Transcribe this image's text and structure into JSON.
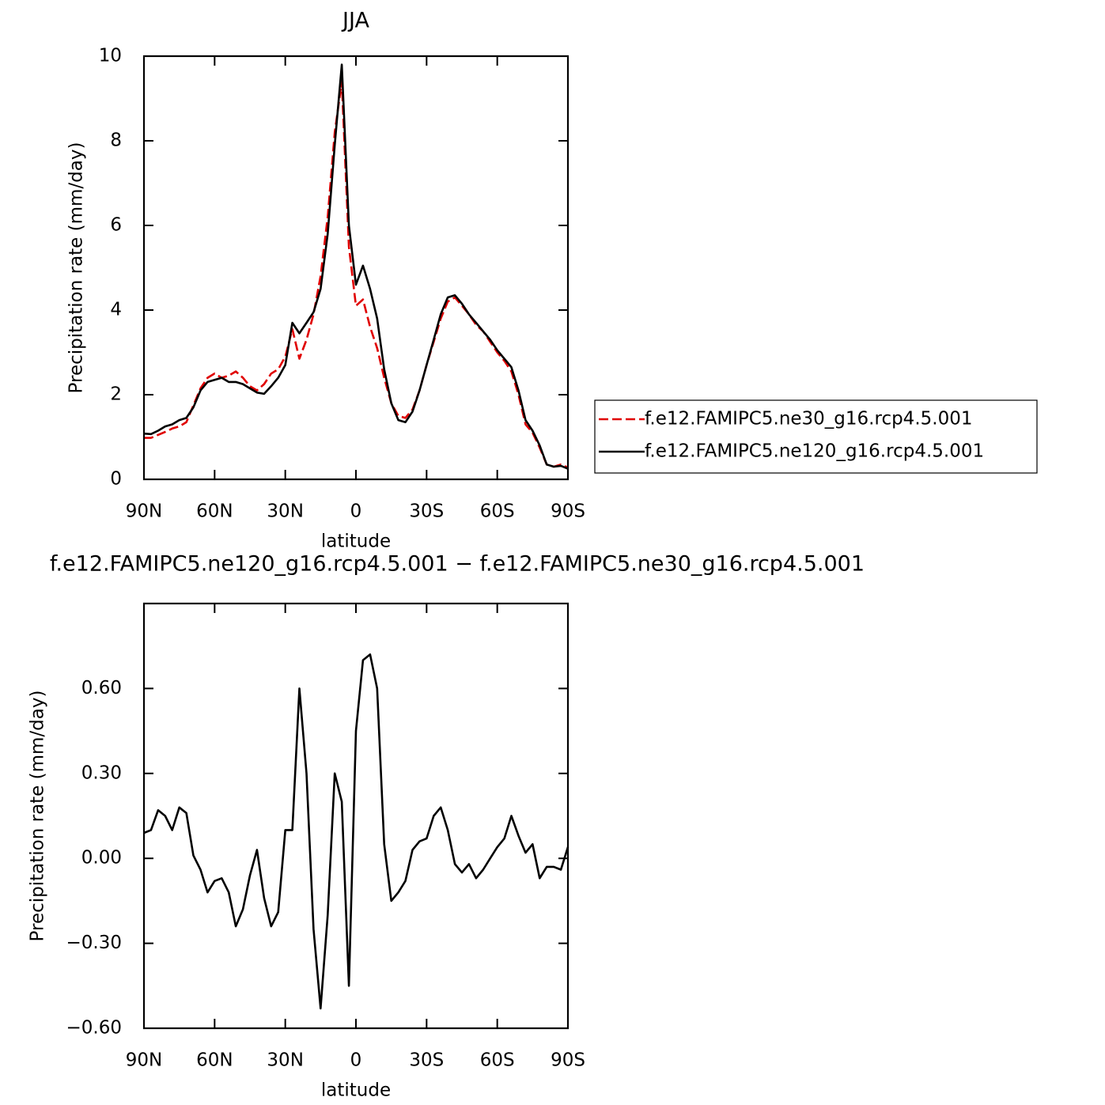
{
  "chart_data": [
    {
      "type": "line",
      "title": "JJA",
      "xlabel": "latitude",
      "ylabel": "Precipitation rate (mm/day)",
      "x": [
        90,
        87,
        84,
        81,
        78,
        75,
        72,
        69,
        66,
        63,
        60,
        57,
        54,
        51,
        48,
        45,
        42,
        39,
        36,
        33,
        30,
        27,
        24,
        21,
        18,
        15,
        12,
        9,
        6,
        3,
        0,
        -3,
        -6,
        -9,
        -12,
        -15,
        -18,
        -21,
        -24,
        -27,
        -30,
        -33,
        -36,
        -39,
        -42,
        -45,
        -48,
        -51,
        -54,
        -57,
        -60,
        -63,
        -66,
        -69,
        -72,
        -75,
        -78,
        -81,
        -84,
        -87,
        -90
      ],
      "series": [
        {
          "name": "f.e12.FAMIPC5.ne30_g16.rcp4.5.001",
          "color": "#e00000",
          "line_style": "dashed",
          "values": [
            0.98,
            0.98,
            1.05,
            1.12,
            1.2,
            1.25,
            1.35,
            1.75,
            2.15,
            2.4,
            2.5,
            2.4,
            2.45,
            2.55,
            2.4,
            2.2,
            2.1,
            2.25,
            2.5,
            2.6,
            2.9,
            3.55,
            2.85,
            3.3,
            3.9,
            4.8,
            6.2,
            8.2,
            9.4,
            5.5,
            4.1,
            4.25,
            3.6,
            3.1,
            2.4,
            1.8,
            1.5,
            1.45,
            1.65,
            2.1,
            2.7,
            3.25,
            3.8,
            4.2,
            4.3,
            4.1,
            3.9,
            3.65,
            3.5,
            3.25,
            3.0,
            2.8,
            2.55,
            2.0,
            1.3,
            1.1,
            0.75,
            0.35,
            0.3,
            0.35,
            0.28
          ]
        },
        {
          "name": "f.e12.FAMIPC5.ne120_g16.rcp4.5.001",
          "color": "#000000",
          "line_style": "solid",
          "values": [
            1.08,
            1.07,
            1.15,
            1.25,
            1.3,
            1.4,
            1.45,
            1.7,
            2.1,
            2.3,
            2.35,
            2.4,
            2.3,
            2.3,
            2.25,
            2.15,
            2.05,
            2.02,
            2.2,
            2.4,
            2.7,
            3.7,
            3.45,
            3.7,
            3.95,
            4.5,
            5.8,
            7.9,
            9.8,
            6.0,
            4.6,
            5.05,
            4.5,
            3.8,
            2.6,
            1.8,
            1.4,
            1.35,
            1.6,
            2.1,
            2.7,
            3.3,
            3.9,
            4.3,
            4.35,
            4.15,
            3.9,
            3.7,
            3.5,
            3.3,
            3.05,
            2.85,
            2.65,
            2.1,
            1.4,
            1.15,
            0.8,
            0.35,
            0.3,
            0.32,
            0.25
          ]
        }
      ],
      "xlim": [
        90,
        -90
      ],
      "xticks": [
        {
          "value": 90,
          "label": "90N"
        },
        {
          "value": 60,
          "label": "60N"
        },
        {
          "value": 30,
          "label": "30N"
        },
        0,
        {
          "value": -30,
          "label": "30S"
        },
        {
          "value": -60,
          "label": "60S"
        },
        {
          "value": -90,
          "label": "90S"
        }
      ],
      "ylim": [
        0,
        10
      ],
      "yticks": [
        0,
        2,
        4,
        6,
        8,
        10
      ],
      "legend": "right"
    },
    {
      "type": "line",
      "title": "f.e12.FAMIPC5.ne120_g16.rcp4.5.001 − f.e12.FAMIPC5.ne30_g16.rcp4.5.001",
      "xlabel": "latitude",
      "ylabel": "Precipitation rate (mm/day)",
      "x": [
        90,
        87,
        84,
        81,
        78,
        75,
        72,
        69,
        66,
        63,
        60,
        57,
        54,
        51,
        48,
        45,
        42,
        39,
        36,
        33,
        30,
        27,
        24,
        21,
        18,
        15,
        12,
        9,
        6,
        3,
        0,
        -3,
        -6,
        -9,
        -12,
        -15,
        -18,
        -21,
        -24,
        -27,
        -30,
        -33,
        -36,
        -39,
        -42,
        -45,
        -48,
        -51,
        -54,
        -57,
        -60,
        -63,
        -66,
        -69,
        -72,
        -75,
        -78,
        -81,
        -84,
        -87,
        -90
      ],
      "values": [
        0.09,
        0.1,
        0.17,
        0.15,
        0.1,
        0.18,
        0.16,
        0.01,
        -0.04,
        -0.12,
        -0.08,
        -0.07,
        -0.12,
        -0.24,
        -0.18,
        -0.06,
        0.03,
        -0.14,
        -0.24,
        -0.19,
        0.1,
        0.1,
        0.6,
        0.3,
        -0.25,
        -0.53,
        -0.2,
        0.3,
        0.2,
        -0.45,
        0.45,
        0.7,
        0.72,
        0.6,
        0.05,
        -0.15,
        -0.12,
        -0.08,
        0.03,
        0.06,
        0.07,
        0.15,
        0.18,
        0.1,
        -0.02,
        -0.05,
        -0.02,
        -0.07,
        -0.04,
        0.0,
        0.04,
        0.07,
        0.15,
        0.08,
        0.02,
        0.05,
        -0.07,
        -0.03,
        -0.03,
        -0.04,
        0.04
      ],
      "color": "#000000",
      "xlim": [
        90,
        -90
      ],
      "xticks": [
        {
          "value": 90,
          "label": "90N"
        },
        {
          "value": 60,
          "label": "60N"
        },
        {
          "value": 30,
          "label": "30N"
        },
        0,
        {
          "value": -30,
          "label": "30S"
        },
        {
          "value": -60,
          "label": "60S"
        },
        {
          "value": -90,
          "label": "90S"
        }
      ],
      "ylim": [
        -0.6,
        0.9
      ],
      "yticks": [
        {
          "value": -0.6,
          "label": "−0.60"
        },
        {
          "value": -0.3,
          "label": "−0.30"
        },
        {
          "value": 0,
          "label": "0.00"
        },
        {
          "value": 0.3,
          "label": "0.30"
        },
        {
          "value": 0.6,
          "label": "0.60"
        }
      ]
    }
  ]
}
